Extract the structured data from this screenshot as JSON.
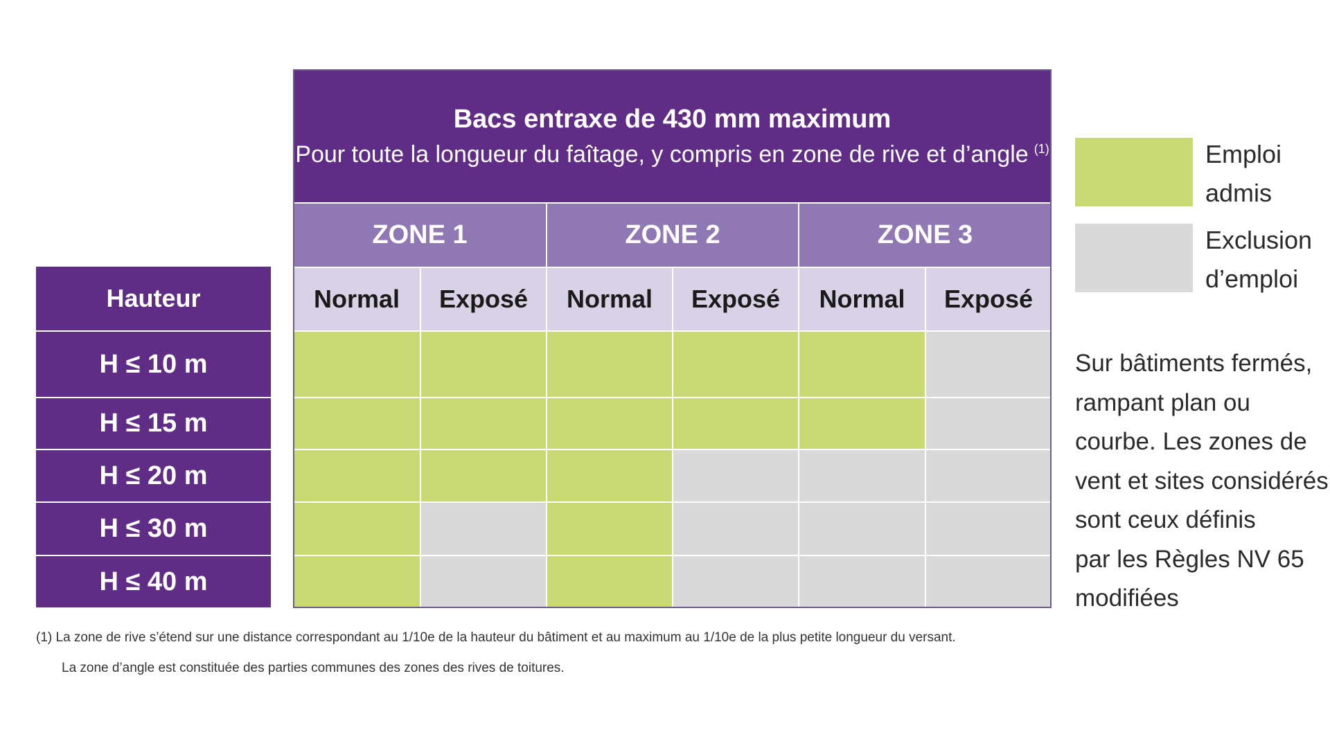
{
  "header": {
    "title": "Bacs entraxe de 430 mm maximum",
    "subtitle": "Pour toute la longueur du faîtage, y compris en zone de rive et d’angle",
    "subtitle_note": "(1)"
  },
  "table": {
    "row_header": "Hauteur",
    "zones": [
      "ZONE 1",
      "ZONE 2",
      "ZONE 3"
    ],
    "columns": [
      "Normal",
      "Exposé",
      "Normal",
      "Exposé",
      "Normal",
      "Exposé"
    ],
    "rows": [
      {
        "label": "H ≤ 10 m",
        "cells": [
          "#c9da74",
          "#c9da74",
          "#c9da74",
          "#c9da74",
          "#c9da74",
          "#d9d9d9"
        ]
      },
      {
        "label": "H ≤ 15 m",
        "cells": [
          "#c9da74",
          "#c9da74",
          "#c9da74",
          "#c9da74",
          "#c9da74",
          "#d9d9d9"
        ]
      },
      {
        "label": "H ≤ 20 m",
        "cells": [
          "#c9da74",
          "#c9da74",
          "#c9da74",
          "#d9d9d9",
          "#d9d9d9",
          "#d9d9d9"
        ]
      },
      {
        "label": "H ≤ 30 m",
        "cells": [
          "#c9da74",
          "#d9d9d9",
          "#c9da74",
          "#d9d9d9",
          "#d9d9d9",
          "#d9d9d9"
        ]
      },
      {
        "label": "H ≤ 40 m",
        "cells": [
          "#c9da74",
          "#d9d9d9",
          "#c9da74",
          "#d9d9d9",
          "#d9d9d9",
          "#d9d9d9"
        ]
      }
    ]
  },
  "legend": [
    {
      "label": "Emploi admis",
      "color": "#c9da74"
    },
    {
      "label": "Exclusion d’emploi",
      "color": "#d9d9d9"
    }
  ],
  "note": {
    "lines": [
      "Sur bâtiments fermés,",
      "rampant plan ou",
      "courbe. Les zones de",
      "vent et sites considérés",
      "sont ceux définis",
      "par les Règles NV 65",
      "modifiées"
    ]
  },
  "footnote": {
    "lines": [
      "(1) La zone de rive s’étend sur une distance correspondant au 1/10e de la hauteur du bâtiment et au maximum au 1/10e de la plus petite longueur du versant.",
      "La zone d’angle est constituée des parties communes des zones des rives de toitures."
    ]
  }
}
